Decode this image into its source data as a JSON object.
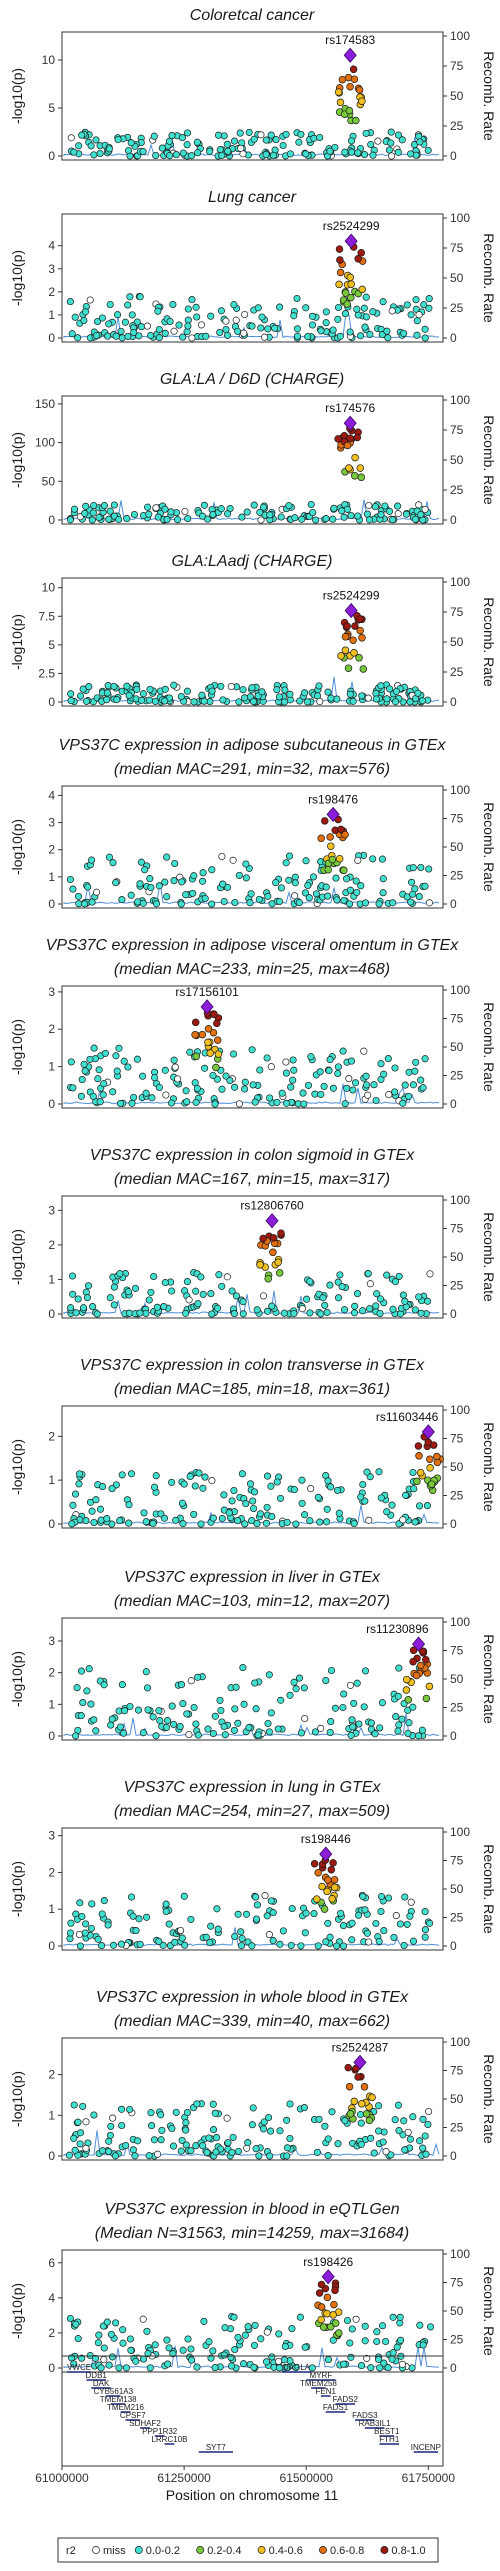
{
  "chart_data": {
    "type": "scatter",
    "x_range": [
      61000000,
      61780000
    ],
    "xlabel": "Position on chromosome 11",
    "x_ticks": [
      "61000000",
      "61250000",
      "61500000",
      "61750000"
    ],
    "ylabel_left": "-log10(p)",
    "ylabel_right": "Recomb. Rate",
    "recomb_ticks": [
      "0",
      "25",
      "50",
      "75",
      "100"
    ],
    "legend": {
      "title": "r2",
      "items": [
        {
          "label": "miss",
          "color": "#ffffff"
        },
        {
          "label": "0.0-0.2",
          "color": "#40e0d0"
        },
        {
          "label": "0.2-0.4",
          "color": "#78c83c"
        },
        {
          "label": "0.4-0.6",
          "color": "#f0c020"
        },
        {
          "label": "0.6-0.8",
          "color": "#e07010"
        },
        {
          "label": "0.8-1.0",
          "color": "#9c1a10"
        }
      ]
    },
    "panels": [
      {
        "title": [
          "Coloretcal cancer"
        ],
        "lead_snp": "rs174583",
        "lead_x": 61590000,
        "lead_y": 10.5,
        "ymax": 12.5,
        "y_ticks": [
          0,
          5,
          10
        ],
        "background_max": 2.5
      },
      {
        "title": [
          "Lung cancer"
        ],
        "lead_snp": "rs2524299",
        "lead_x": 61592000,
        "lead_y": 4.2,
        "ymax": 5.2,
        "y_ticks": [
          0,
          1,
          2,
          3,
          4
        ],
        "background_max": 1.8
      },
      {
        "title": [
          "GLA:LA / D6D (CHARGE)"
        ],
        "lead_snp": "rs174576",
        "lead_x": 61590000,
        "lead_y": 125,
        "ymax": 155,
        "y_ticks": [
          0,
          50,
          100,
          150
        ],
        "background_max": 20
      },
      {
        "title": [
          "GLA:LAadj (CHARGE)"
        ],
        "lead_snp": "rs2524299",
        "lead_x": 61592000,
        "lead_y": 8.0,
        "ymax": 10.5,
        "y_ticks": [
          0.0,
          2.5,
          5.0,
          7.5,
          10.0
        ],
        "background_max": 1.5
      },
      {
        "title": [
          "VPS37C expression in adipose subcutaneous in GTEx",
          "(median MAC=291, min=32, max=576)"
        ],
        "lead_snp": "rs198476",
        "lead_x": 61555000,
        "lead_y": 3.3,
        "ymax": 4.2,
        "y_ticks": [
          0,
          1,
          2,
          3,
          4
        ],
        "background_max": 1.8
      },
      {
        "title": [
          "VPS37C expression in adipose visceral omentum in GTEx",
          "(median MAC=233, min=25, max=468)"
        ],
        "lead_snp": "rs17156101",
        "lead_x": 61297000,
        "lead_y": 2.6,
        "ymax": 3.05,
        "y_ticks": [
          0,
          1,
          2,
          3
        ],
        "background_max": 1.5
      },
      {
        "title": [
          "VPS37C expression in colon sigmoid in GTEx",
          "(median MAC=167, min=15, max=317)"
        ],
        "lead_snp": "rs12806760",
        "lead_x": 61430000,
        "lead_y": 2.7,
        "ymax": 3.3,
        "y_ticks": [
          0,
          1,
          2,
          3
        ],
        "background_max": 1.2
      },
      {
        "title": [
          "VPS37C expression in colon transverse in GTEx",
          "(median MAC=185, min=18, max=361)"
        ],
        "lead_snp": "rs11603446",
        "lead_x": 61750000,
        "lead_y": 2.1,
        "ymax": 2.6,
        "y_ticks": [
          0,
          1,
          2
        ],
        "background_max": 1.2
      },
      {
        "title": [
          "VPS37C expression in liver in GTEx",
          "(median MAC=103, min=12, max=207)"
        ],
        "lead_snp": "rs11230896",
        "lead_x": 61730000,
        "lead_y": 2.9,
        "ymax": 3.6,
        "y_ticks": [
          0,
          1,
          2,
          3
        ],
        "background_max": 2.2
      },
      {
        "title": [
          "VPS37C expression in lung in GTEx",
          "(median MAC=254, min=27, max=509)"
        ],
        "lead_snp": "rs198446",
        "lead_x": 61540000,
        "lead_y": 2.5,
        "ymax": 3.1,
        "y_ticks": [
          0,
          1,
          2,
          3
        ],
        "background_max": 1.4
      },
      {
        "title": [
          "VPS37C expression in whole blood in GTEx",
          "(median MAC=339, min=40, max=662)"
        ],
        "lead_snp": "rs2524287",
        "lead_x": 61610000,
        "lead_y": 2.3,
        "ymax": 2.8,
        "y_ticks": [
          0,
          1,
          2
        ],
        "background_max": 1.3
      },
      {
        "title": [
          "VPS37C expression in blood in eQTLGen",
          "(Median N=31563, min=14259, max=31684)"
        ],
        "lead_snp": "rs198426",
        "lead_x": 61545000,
        "lead_y": 5.2,
        "ymax": 6.5,
        "y_ticks": [
          0,
          2,
          4,
          6
        ],
        "background_max": 3.0
      }
    ],
    "genes": [
      {
        "name": "VWCE",
        "start": 61010000,
        "end": 61060000
      },
      {
        "name": "DDB1",
        "start": 61050000,
        "end": 61090000
      },
      {
        "name": "DAK",
        "start": 61060000,
        "end": 61100000
      },
      {
        "name": "CYB561A3",
        "start": 61090000,
        "end": 61120000
      },
      {
        "name": "TMEM138",
        "start": 61100000,
        "end": 61130000
      },
      {
        "name": "TMEM216",
        "start": 61120000,
        "end": 61140000
      },
      {
        "name": "CPSF7",
        "start": 61130000,
        "end": 61160000
      },
      {
        "name": "SDHAF2",
        "start": 61160000,
        "end": 61180000
      },
      {
        "name": "PPP1R32",
        "start": 61190000,
        "end": 61210000
      },
      {
        "name": "LRRC10B",
        "start": 61210000,
        "end": 61230000
      },
      {
        "name": "SYT7",
        "start": 61280000,
        "end": 61350000
      },
      {
        "name": "DAGLA",
        "start": 61450000,
        "end": 61510000
      },
      {
        "name": "MYRF",
        "start": 61500000,
        "end": 61560000
      },
      {
        "name": "TMEM258",
        "start": 61510000,
        "end": 61540000
      },
      {
        "name": "FEN1",
        "start": 61530000,
        "end": 61550000
      },
      {
        "name": "FADS2",
        "start": 61560000,
        "end": 61600000
      },
      {
        "name": "FADS1",
        "start": 61540000,
        "end": 61580000
      },
      {
        "name": "FADS3",
        "start": 61600000,
        "end": 61640000
      },
      {
        "name": "RAB3IL1",
        "start": 61620000,
        "end": 61660000
      },
      {
        "name": "BEST1",
        "start": 61650000,
        "end": 61680000
      },
      {
        "name": "FTH1",
        "start": 61650000,
        "end": 61690000
      },
      {
        "name": "INCENP",
        "start": 61720000,
        "end": 61770000
      }
    ]
  }
}
